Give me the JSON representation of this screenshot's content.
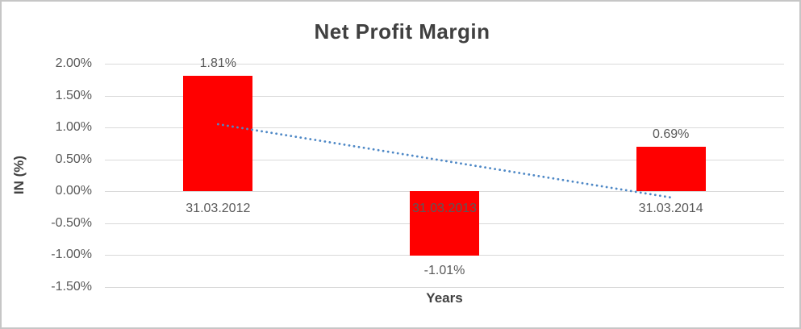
{
  "chart_data": {
    "type": "bar",
    "title": "Net Profit Margin",
    "xlabel": "Years",
    "ylabel": "IN (%)",
    "categories": [
      "31.03.2012",
      "31.03.2013",
      "31.03.2014"
    ],
    "values": [
      1.81,
      -1.01,
      0.69
    ],
    "data_labels": [
      "1.81%",
      "-1.01%",
      "0.69%"
    ],
    "ylim": [
      -1.5,
      2.0
    ],
    "ytick_step": 0.5,
    "ytick_labels": [
      "2.00%",
      "1.50%",
      "1.00%",
      "0.50%",
      "0.00%",
      "-0.50%",
      "-1.00%",
      "-1.50%"
    ],
    "grid": true,
    "legend": false,
    "trendline": {
      "type": "linear",
      "style": "dotted",
      "start_value": 1.05,
      "end_value": -0.1
    }
  },
  "colors": {
    "bar": "#ff0000",
    "trendline": "#4e88c6",
    "gridline": "#d9d9d9",
    "tick_text": "#595959",
    "title_text": "#404040"
  }
}
